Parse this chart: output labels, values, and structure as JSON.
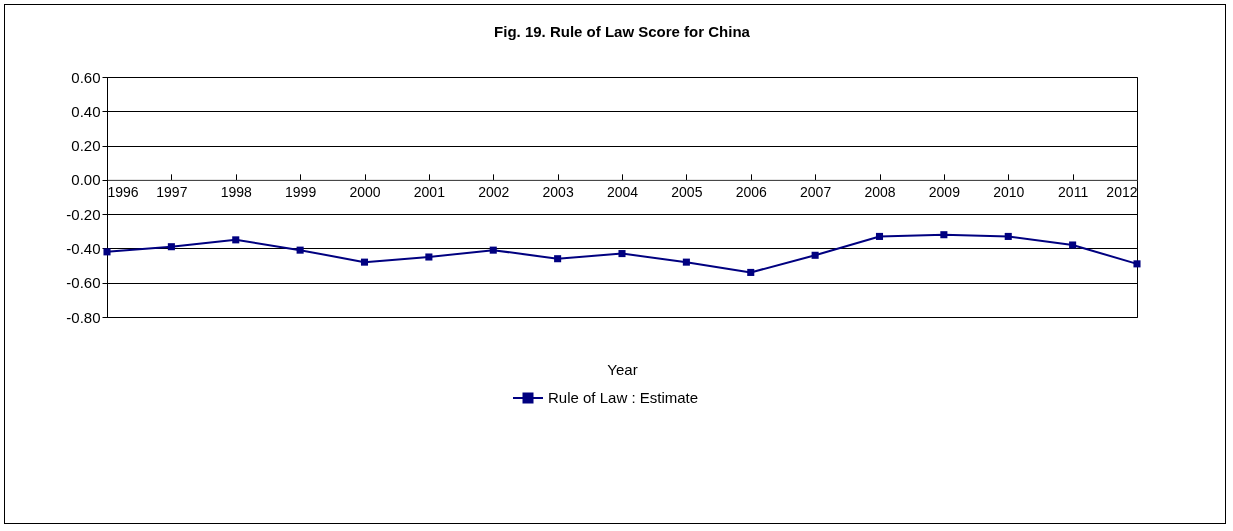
{
  "chart_data": {
    "type": "line",
    "title": "Fig. 19. Rule of Law Score for China",
    "xlabel": "Year",
    "categories": [
      "1996",
      "1997",
      "1998",
      "1999",
      "2000",
      "2001",
      "2002",
      "2003",
      "2004",
      "2005",
      "2006",
      "2007",
      "2008",
      "2009",
      "2010",
      "2011",
      "2012"
    ],
    "series": [
      {
        "name": "Rule of Law : Estimate",
        "color": "#000080",
        "values": [
          -0.42,
          -0.39,
          -0.35,
          -0.41,
          -0.48,
          -0.45,
          -0.41,
          -0.46,
          -0.43,
          -0.48,
          -0.54,
          -0.44,
          -0.33,
          -0.32,
          -0.33,
          -0.38,
          -0.49
        ]
      }
    ],
    "ylim": [
      -0.8,
      0.6
    ],
    "yticks": [
      {
        "value": -0.8,
        "label": "-0.80"
      },
      {
        "value": -0.6,
        "label": "-0.60"
      },
      {
        "value": -0.4,
        "label": "-0.40"
      },
      {
        "value": -0.2,
        "label": "-0.20"
      },
      {
        "value": 0,
        "label": "0.00"
      },
      {
        "value": 0.2,
        "label": "0.20"
      },
      {
        "value": 0.4,
        "label": "0.40"
      },
      {
        "value": 0.6,
        "label": "0.60"
      }
    ],
    "grid": "y",
    "legend": "bottom",
    "marker": "square",
    "line_style": "solid"
  }
}
